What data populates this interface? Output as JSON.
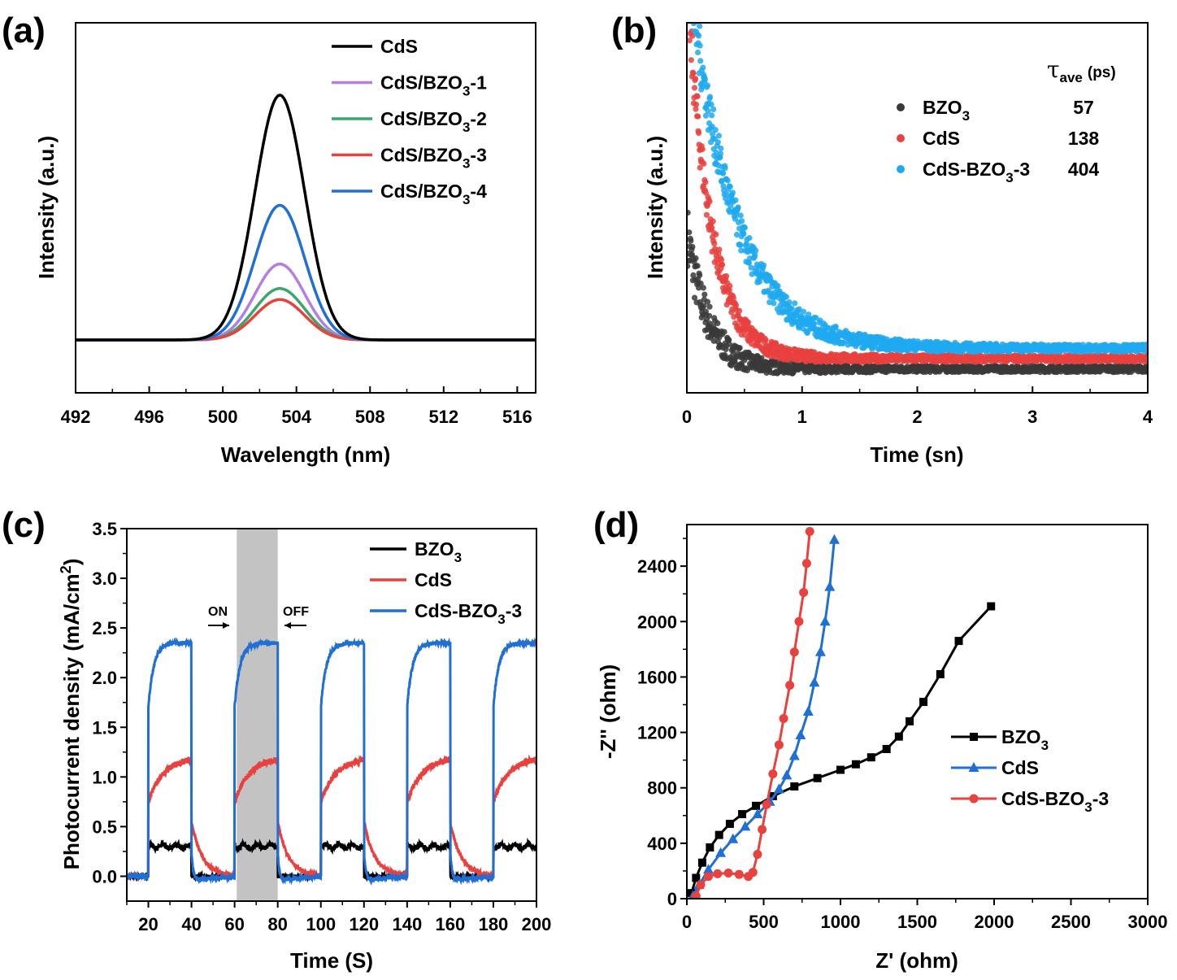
{
  "colors": {
    "black": "#000000",
    "purple": "#b57ee0",
    "green": "#3aa76d",
    "red": "#e8413e",
    "blue": "#1f6fd4",
    "cyan": "#1fa9f0",
    "gray": "#3a3a3a",
    "shade": "#c3c3c3"
  },
  "chart_data": [
    {
      "panel": "(a)",
      "type": "line",
      "xlabel": "Wavelength (nm)",
      "ylabel": "Intensity (a.u.)",
      "xlim": [
        492,
        517
      ],
      "xticks": [
        "492",
        "496",
        "500",
        "504",
        "508",
        "512",
        "516"
      ],
      "peak_center": 503.1,
      "peak_sigma": 1.35,
      "series": [
        {
          "name": "CdS",
          "sub": "",
          "tail": "",
          "color": "#000000",
          "peak_height": 1.0
        },
        {
          "name": "CdS/BZO",
          "sub": "3",
          "tail": "-1",
          "color": "#b57ee0",
          "peak_height": 0.31
        },
        {
          "name": "CdS/BZO",
          "sub": "3",
          "tail": "-2",
          "color": "#3aa76d",
          "peak_height": 0.21
        },
        {
          "name": "CdS/BZO",
          "sub": "3",
          "tail": "-3",
          "color": "#e8413e",
          "peak_height": 0.165
        },
        {
          "name": "CdS/BZO",
          "sub": "3",
          "tail": "-4",
          "color": "#1f6fd4",
          "peak_height": 0.55
        }
      ]
    },
    {
      "panel": "(b)",
      "type": "scatter",
      "xlabel": "Time (sn)",
      "ylabel": "Intensity (a.u.)",
      "xlim": [
        0,
        4
      ],
      "xticks": [
        "0",
        "1",
        "2",
        "3",
        "4"
      ],
      "tau_header": "τ",
      "tau_header_sub": "ave",
      "tau_header_unit": "(ps)",
      "series": [
        {
          "name": "BZO",
          "sub": "3",
          "tail": "",
          "tau_ave": "57",
          "color": "#3a3a3a",
          "label_color": "#000000",
          "amplitude": 0.3,
          "decay_ns": 0.18,
          "baseline": 0.02
        },
        {
          "name": "CdS",
          "sub": "",
          "tail": "",
          "tau_ave": "138",
          "color": "#e8413e",
          "label_color": "#e8413e",
          "amplitude": 0.85,
          "decay_ns": 0.2,
          "baseline": 0.05
        },
        {
          "name": "CdS-BZO",
          "sub": "3",
          "tail": "-3",
          "tau_ave": "404",
          "color": "#1fa9f0",
          "label_color": "#1fa9f0",
          "amplitude": 1.0,
          "decay_ns": 0.38,
          "baseline": 0.08
        }
      ]
    },
    {
      "panel": "(c)",
      "type": "line",
      "xlabel": "Time (S)",
      "ylabel": "Photocurrent density (mA/cm",
      "ylabel_sup": "2",
      "ylabel_tail": ")",
      "xlim": [
        10,
        200
      ],
      "ylim": [
        -0.25,
        3.5
      ],
      "xticks": [
        "20",
        "40",
        "60",
        "80",
        "100",
        "120",
        "140",
        "160",
        "180",
        "200"
      ],
      "yticks": [
        "0.0",
        "0.5",
        "1.0",
        "1.5",
        "2.0",
        "2.5",
        "3.0",
        "3.5"
      ],
      "on_label": "ON",
      "off_label": "OFF",
      "shaded_interval": [
        61,
        80
      ],
      "light_on_intervals": [
        [
          20,
          40
        ],
        [
          60,
          80
        ],
        [
          100,
          120
        ],
        [
          140,
          160
        ],
        [
          180,
          200
        ]
      ],
      "series": [
        {
          "name": "BZO",
          "sub": "3",
          "tail": "",
          "color": "#000000",
          "on_value": 0.3,
          "off_value": 0.0
        },
        {
          "name": "CdS",
          "sub": "",
          "tail": "",
          "color": "#e8413e",
          "on_value": 1.2,
          "off_value": 0.0
        },
        {
          "name": "CdS-BZO",
          "sub": "3",
          "tail": "-3",
          "color": "#1f6fd4",
          "on_value": 2.35,
          "off_value": 0.0
        }
      ]
    },
    {
      "panel": "(d)",
      "type": "line",
      "xlabel": "Z' (ohm)",
      "ylabel": "-Z'' (ohm)",
      "xlim": [
        0,
        3000
      ],
      "ylim": [
        0,
        2700
      ],
      "xticks": [
        "0",
        "500",
        "1000",
        "1500",
        "2000",
        "2500",
        "3000"
      ],
      "yticks": [
        "0",
        "400",
        "800",
        "1200",
        "1600",
        "2000",
        "2400"
      ],
      "series": [
        {
          "name": "BZO",
          "sub": "3",
          "tail": "",
          "color": "#000000",
          "marker": "square",
          "points": [
            [
              30,
              40
            ],
            [
              60,
              150
            ],
            [
              100,
              260
            ],
            [
              150,
              370
            ],
            [
              210,
              460
            ],
            [
              280,
              540
            ],
            [
              360,
              610
            ],
            [
              450,
              670
            ],
            [
              560,
              740
            ],
            [
              700,
              810
            ],
            [
              850,
              870
            ],
            [
              1000,
              930
            ],
            [
              1100,
              970
            ],
            [
              1200,
              1020
            ],
            [
              1300,
              1080
            ],
            [
              1380,
              1170
            ],
            [
              1450,
              1280
            ],
            [
              1540,
              1420
            ],
            [
              1650,
              1620
            ],
            [
              1770,
              1860
            ],
            [
              1980,
              2110
            ]
          ]
        },
        {
          "name": "CdS",
          "sub": "",
          "tail": "",
          "color": "#1f6fd4",
          "marker": "triangle",
          "points": [
            [
              40,
              20
            ],
            [
              80,
              100
            ],
            [
              140,
              210
            ],
            [
              220,
              330
            ],
            [
              300,
              430
            ],
            [
              380,
              520
            ],
            [
              460,
              610
            ],
            [
              540,
              700
            ],
            [
              600,
              790
            ],
            [
              650,
              890
            ],
            [
              700,
              1030
            ],
            [
              740,
              1180
            ],
            [
              790,
              1350
            ],
            [
              830,
              1560
            ],
            [
              870,
              1780
            ],
            [
              900,
              2000
            ],
            [
              930,
              2250
            ],
            [
              960,
              2590
            ]
          ]
        },
        {
          "name": "CdS-BZO",
          "sub": "3",
          "tail": "-3",
          "color": "#e8413e",
          "marker": "circle",
          "points": [
            [
              60,
              20
            ],
            [
              90,
              100
            ],
            [
              140,
              160
            ],
            [
              200,
              180
            ],
            [
              270,
              185
            ],
            [
              340,
              175
            ],
            [
              400,
              160
            ],
            [
              430,
              190
            ],
            [
              460,
              320
            ],
            [
              490,
              500
            ],
            [
              520,
              680
            ],
            [
              560,
              900
            ],
            [
              600,
              1110
            ],
            [
              630,
              1300
            ],
            [
              670,
              1540
            ],
            [
              700,
              1780
            ],
            [
              730,
              2000
            ],
            [
              760,
              2210
            ],
            [
              780,
              2420
            ],
            [
              800,
              2650
            ]
          ]
        }
      ]
    }
  ],
  "panels": {
    "a": "(a)",
    "b": "(b)",
    "c": "(c)",
    "d": "(d)"
  }
}
